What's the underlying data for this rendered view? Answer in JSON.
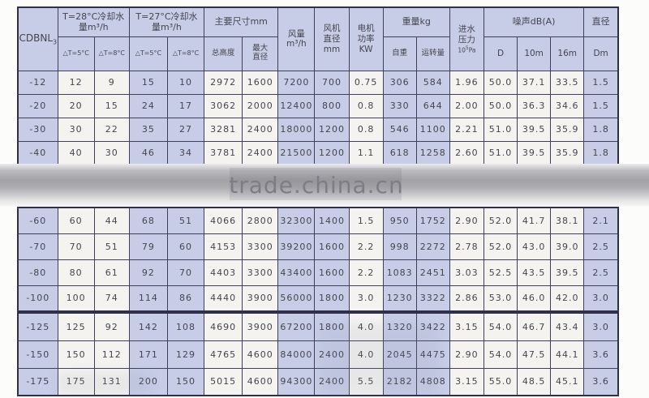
{
  "watermark": {
    "text": "trade.china.cn"
  },
  "colors": {
    "cell_blue": "#c7cde6",
    "cell_white": "#f4f3f0",
    "grid_border": "#40405a",
    "watermark_text": "#7d7d85"
  },
  "table": {
    "header": {
      "model": {
        "main": "CDBNL",
        "sub": "3"
      },
      "t28": {
        "label": "T=28°C冷却水\n量m³/h",
        "subs": [
          "△T=5°C",
          "△T=8°C"
        ]
      },
      "t27": {
        "label": "T=27°C冷却水\n量m³/h",
        "subs": [
          "△T=5°C",
          "△T=8°C"
        ]
      },
      "dims": {
        "label": "主要尺寸mm",
        "subs": [
          "总高度",
          "最大\n直径"
        ]
      },
      "airflow": {
        "label": "风量\nm³/h"
      },
      "fan": {
        "label": "风机\n直径\nmm"
      },
      "motor": {
        "label": "电机\n功率\nKW"
      },
      "weight": {
        "label": "重量kg",
        "subs": [
          "自重",
          "运转量"
        ]
      },
      "pressure": {
        "label": "进水\n压力",
        "unit_base": "10",
        "unit_sup": "5",
        "unit_tail": "Pa"
      },
      "noise": {
        "label": "噪声dB(A)",
        "subs": [
          "D",
          "10m",
          "16m"
        ]
      },
      "dia": {
        "label": "直径",
        "sub": "Dm"
      }
    },
    "rows": [
      [
        "-12",
        "12",
        "9",
        "15",
        "10",
        "2972",
        "1600",
        "7200",
        "700",
        "0.75",
        "306",
        "584",
        "1.96",
        "50.0",
        "37.1",
        "33.5",
        "1.5"
      ],
      [
        "-20",
        "20",
        "15",
        "24",
        "17",
        "3062",
        "2000",
        "12400",
        "800",
        "0.8",
        "330",
        "644",
        "2.00",
        "50.0",
        "36.3",
        "34.6",
        "1.5"
      ],
      [
        "-30",
        "30",
        "22",
        "35",
        "27",
        "3281",
        "2400",
        "18000",
        "1200",
        "0.8",
        "546",
        "1100",
        "2.21",
        "51.0",
        "39.5",
        "35.9",
        "1.8"
      ],
      [
        "-40",
        "40",
        "30",
        "46",
        "34",
        "3781",
        "2400",
        "21500",
        "1200",
        "1.1",
        "618",
        "1258",
        "2.60",
        "51.0",
        "39.5",
        "35.9",
        "1.8"
      ],
      [
        "-60",
        "60",
        "44",
        "68",
        "51",
        "4066",
        "2800",
        "32300",
        "1400",
        "1.5",
        "950",
        "1752",
        "2.90",
        "52.0",
        "41.7",
        "38.1",
        "2.1"
      ],
      [
        "-70",
        "70",
        "51",
        "79",
        "60",
        "4153",
        "3300",
        "39200",
        "1600",
        "2.2",
        "998",
        "2272",
        "2.78",
        "52.0",
        "43.0",
        "39.0",
        "2.5"
      ],
      [
        "-80",
        "80",
        "61",
        "92",
        "70",
        "4403",
        "3300",
        "43400",
        "1600",
        "2.2",
        "1083",
        "2451",
        "3.03",
        "52.5",
        "43.5",
        "39.5",
        "2.5"
      ],
      [
        "-100",
        "100",
        "74",
        "114",
        "86",
        "4440",
        "3900",
        "56000",
        "1800",
        "3.0",
        "1230",
        "3322",
        "2.86",
        "53.0",
        "46.0",
        "42.0",
        "3.0"
      ],
      [
        "-125",
        "125",
        "92",
        "142",
        "108",
        "4690",
        "3900",
        "67200",
        "1800",
        "4.0",
        "1320",
        "3422",
        "3.15",
        "54.0",
        "46.7",
        "43.4",
        "3.0"
      ],
      [
        "-150",
        "150",
        "112",
        "171",
        "129",
        "4765",
        "4600",
        "84000",
        "2400",
        "4.0",
        "2045",
        "4475",
        "2.90",
        "54.0",
        "47.5",
        "44.1",
        "3.6"
      ],
      [
        "-175",
        "175",
        "131",
        "200",
        "150",
        "5015",
        "4600",
        "94300",
        "2400",
        "5.5",
        "2182",
        "4808",
        "3.15",
        "55.0",
        "48.5",
        "45.1",
        "3.6"
      ]
    ]
  }
}
